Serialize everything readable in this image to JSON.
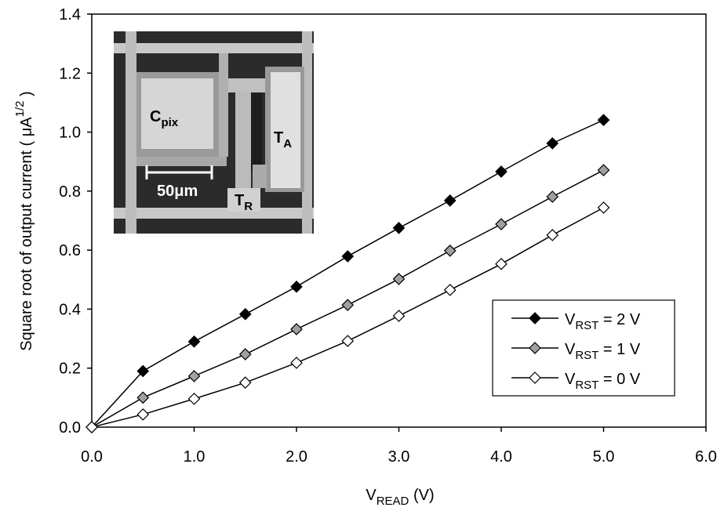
{
  "chart_data": {
    "type": "line",
    "x_label": [
      "V",
      "READ",
      " (V)"
    ],
    "y_label": [
      "Square root of output current ( μA",
      "1/2",
      " )"
    ],
    "x": [
      0,
      0.5,
      1,
      1.5,
      2,
      2.5,
      3,
      3.5,
      4,
      4.5,
      5
    ],
    "series": [
      {
        "name": [
          "V",
          "RST",
          " = 2 V"
        ],
        "color": "#000000",
        "values": [
          0,
          0.19,
          0.29,
          0.383,
          0.476,
          0.579,
          0.675,
          0.768,
          0.866,
          0.962,
          1.041
        ]
      },
      {
        "name": [
          "V",
          "RST",
          " = 1 V"
        ],
        "color": "#a0a0a0",
        "values": [
          0,
          0.1,
          0.173,
          0.247,
          0.332,
          0.414,
          0.502,
          0.598,
          0.688,
          0.781,
          0.871
        ]
      },
      {
        "name": [
          "V",
          "RST",
          " = 0 V"
        ],
        "color": "#ffffff",
        "values": [
          0,
          0.043,
          0.096,
          0.151,
          0.218,
          0.292,
          0.377,
          0.465,
          0.553,
          0.651,
          0.744
        ]
      }
    ],
    "xlim": [
      0,
      6
    ],
    "ylim": [
      0,
      1.4
    ],
    "xticks": [
      {
        "value": 0,
        "label": "0.0"
      },
      {
        "value": 1,
        "label": "1.0"
      },
      {
        "value": 2,
        "label": "2.0"
      },
      {
        "value": 3,
        "label": "3.0"
      },
      {
        "value": 4,
        "label": "4.0"
      },
      {
        "value": 5,
        "label": "5.0"
      },
      {
        "value": 6,
        "label": "6.0"
      }
    ],
    "yticks": [
      {
        "value": 0,
        "label": "0.0"
      },
      {
        "value": 0.2,
        "label": "0.2"
      },
      {
        "value": 0.4,
        "label": "0.4"
      },
      {
        "value": 0.6,
        "label": "0.6"
      },
      {
        "value": 0.8,
        "label": "0.8"
      },
      {
        "value": 1,
        "label": "1.0"
      },
      {
        "value": 1.2,
        "label": "1.2"
      },
      {
        "value": 1.4,
        "label": "1.4"
      }
    ],
    "legend": "lower right",
    "inset": {
      "labels": [
        [
          "C",
          "pix"
        ],
        [
          "T",
          "A"
        ],
        [
          "T",
          "R"
        ]
      ],
      "scale_bar": "50μm"
    }
  }
}
